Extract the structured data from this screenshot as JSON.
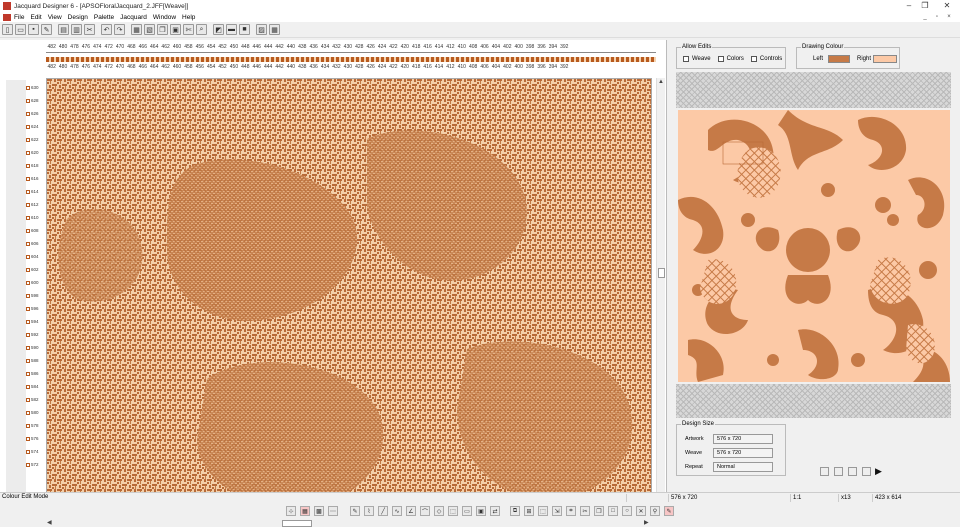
{
  "window": {
    "title": "Jacquard Designer 6 - [APSOFloralJacquard_2.JFF[Weave]]",
    "minimize": "–",
    "restore": "❐",
    "close": "✕"
  },
  "menu": [
    "File",
    "Edit",
    "View",
    "Design",
    "Palette",
    "Jacquard",
    "Window",
    "Help"
  ],
  "ruler": {
    "top": [
      482,
      480,
      478,
      476,
      474,
      472,
      470,
      468,
      466,
      464,
      462,
      460,
      458,
      456,
      454,
      452,
      450,
      448,
      446,
      444,
      442,
      440,
      438,
      436,
      434,
      432,
      430,
      428,
      426,
      424,
      422,
      420,
      418,
      416,
      414,
      412,
      410,
      408,
      406,
      404,
      402,
      400,
      398,
      396,
      394,
      392
    ],
    "top_secondary": [
      482,
      480,
      478,
      476,
      474,
      472,
      470,
      468,
      466,
      464,
      462,
      460,
      458,
      456,
      454,
      452,
      450,
      448,
      446,
      444,
      442,
      440,
      438,
      436,
      434,
      432,
      430,
      428,
      426,
      424,
      422,
      420,
      418,
      416,
      414,
      412,
      410,
      408,
      406,
      404,
      402,
      400,
      398,
      396,
      394,
      392
    ],
    "left": [
      "630",
      "628",
      "626",
      "624",
      "622",
      "620",
      "618",
      "616",
      "614",
      "612",
      "610",
      "608",
      "606",
      "604",
      "602",
      "600",
      "598",
      "596",
      "594",
      "592",
      "590",
      "588",
      "586",
      "584",
      "582",
      "580",
      "578",
      "576",
      "574",
      "572"
    ]
  },
  "allow_edits": {
    "label": "Allow Edits",
    "options": [
      "Weave",
      "Colors",
      "Controls"
    ]
  },
  "drawing_colour": {
    "label": "Drawing Colour",
    "left_label": "Left",
    "right_label": "Right",
    "left_color": "#c67a47",
    "right_color": "#fcc9a6"
  },
  "design_size": {
    "label": "Design Size",
    "rows": [
      {
        "label": "Artwork",
        "value": "576 x 720"
      },
      {
        "label": "Weave",
        "value": "576 x 720"
      },
      {
        "label": "Repeat",
        "value": "Normal"
      }
    ]
  },
  "colors": {
    "warp": "#b86a38",
    "weft": "#f3cfa8",
    "motif": "#c67a47",
    "ground": "#fcc9a6"
  },
  "status": {
    "mode": "Colour Edit Mode",
    "size": "576 x 720",
    "ratio": "1:1",
    "zoom": "x13",
    "coords": "423 x 614"
  }
}
